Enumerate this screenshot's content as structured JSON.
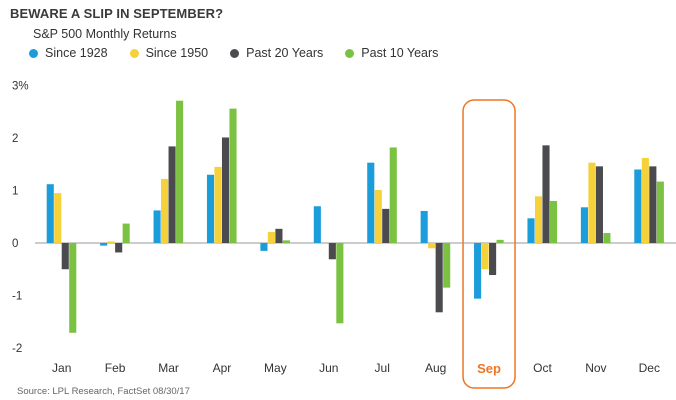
{
  "title": "BEWARE A SLIP IN SEPTEMBER?",
  "subtitle": "S&P 500 Monthly Returns",
  "source": "Source: LPL Research, FactSet  08/30/17",
  "colors": {
    "since1928": "#1b9ddb",
    "since1950": "#f5d13b",
    "past20": "#4b4b4f",
    "past10": "#7cc242",
    "highlight": "#ee7623",
    "axis": "#9a9a9a"
  },
  "chart_data": {
    "type": "bar",
    "title": "BEWARE A SLIP IN SEPTEMBER?",
    "subtitle": "S&P 500 Monthly Returns",
    "categories": [
      "Jan",
      "Feb",
      "Mar",
      "Apr",
      "May",
      "Jun",
      "Jul",
      "Aug",
      "Sep",
      "Oct",
      "Nov",
      "Dec"
    ],
    "highlight_category": "Sep",
    "ylim": [
      -2.3,
      3.0
    ],
    "yticks": [
      -2,
      -1,
      0,
      1,
      2,
      3
    ],
    "ytick_labels": [
      "-2",
      "-1",
      "0",
      "1",
      "2",
      "3%"
    ],
    "legend_position": "top-left",
    "grid": false,
    "series": [
      {
        "name": "Since 1928",
        "color_key": "since1928",
        "values": [
          1.12,
          -0.05,
          0.62,
          1.3,
          -0.15,
          0.7,
          1.53,
          0.61,
          -1.06,
          0.47,
          0.68,
          1.4
        ]
      },
      {
        "name": "Since 1950",
        "color_key": "since1950",
        "values": [
          0.95,
          0.03,
          1.22,
          1.45,
          0.21,
          -0.02,
          1.01,
          -0.1,
          -0.5,
          0.89,
          1.53,
          1.62
        ]
      },
      {
        "name": "Past 20 Years",
        "color_key": "past20",
        "values": [
          -0.5,
          -0.18,
          1.84,
          2.01,
          0.27,
          -0.31,
          0.65,
          -1.32,
          -0.61,
          1.86,
          1.46,
          1.46
        ]
      },
      {
        "name": "Past 10 Years",
        "color_key": "past10",
        "values": [
          -1.71,
          0.37,
          2.71,
          2.56,
          0.05,
          -1.53,
          1.82,
          -0.85,
          0.06,
          0.8,
          0.19,
          1.17
        ]
      }
    ]
  }
}
